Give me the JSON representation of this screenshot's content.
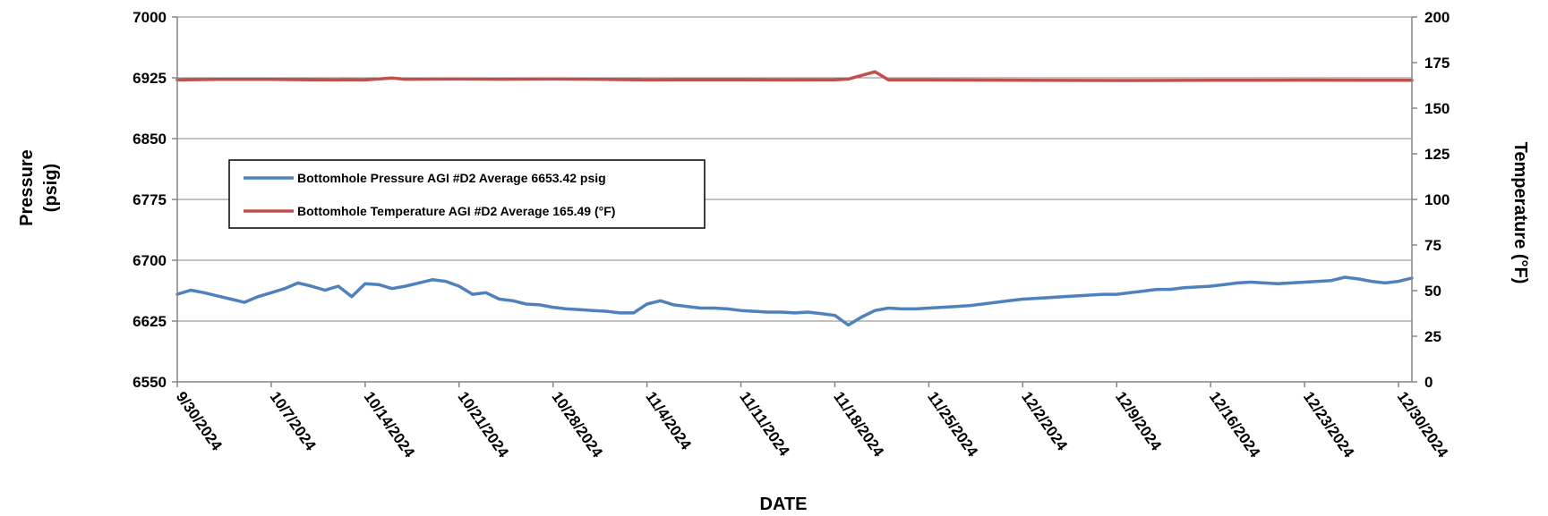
{
  "chart_data": {
    "type": "line",
    "title": "",
    "xlabel": "DATE",
    "ylabel_left": "Pressure (psig)",
    "ylabel_left_lines": [
      "Pressure",
      "(psig)"
    ],
    "ylabel_right": "Temperature (°F)",
    "x_range": [
      "2024-09-30",
      "2024-12-31"
    ],
    "x_tick_labels": [
      "9/30/2024",
      "10/7/2024",
      "10/14/2024",
      "10/21/2024",
      "10/28/2024",
      "11/4/2024",
      "11/11/2024",
      "11/18/2024",
      "11/25/2024",
      "12/2/2024",
      "12/9/2024",
      "12/16/2024",
      "12/23/2024",
      "12/30/2024"
    ],
    "y_left_range": [
      6550,
      7000
    ],
    "y_left_ticks": [
      6550,
      6625,
      6700,
      6775,
      6850,
      6925,
      7000
    ],
    "y_right_range": [
      0,
      200
    ],
    "y_right_ticks": [
      0,
      25,
      50,
      75,
      100,
      125,
      150,
      175,
      200
    ],
    "grid": "horizontal",
    "legend_placement": "upper-left",
    "series": [
      {
        "name": "Bottomhole Pressure AGI #D2 Average 6653.42 psig",
        "axis": "left",
        "color": "#4F81BD",
        "x": [
          "2024-09-30",
          "2024-10-01",
          "2024-10-02",
          "2024-10-03",
          "2024-10-04",
          "2024-10-05",
          "2024-10-06",
          "2024-10-07",
          "2024-10-08",
          "2024-10-09",
          "2024-10-10",
          "2024-10-11",
          "2024-10-12",
          "2024-10-13",
          "2024-10-14",
          "2024-10-15",
          "2024-10-16",
          "2024-10-17",
          "2024-10-18",
          "2024-10-19",
          "2024-10-20",
          "2024-10-21",
          "2024-10-22",
          "2024-10-23",
          "2024-10-24",
          "2024-10-25",
          "2024-10-26",
          "2024-10-27",
          "2024-10-28",
          "2024-10-29",
          "2024-10-30",
          "2024-10-31",
          "2024-11-01",
          "2024-11-02",
          "2024-11-03",
          "2024-11-04",
          "2024-11-05",
          "2024-11-06",
          "2024-11-07",
          "2024-11-08",
          "2024-11-09",
          "2024-11-10",
          "2024-11-11",
          "2024-11-12",
          "2024-11-13",
          "2024-11-14",
          "2024-11-15",
          "2024-11-16",
          "2024-11-17",
          "2024-11-18",
          "2024-11-19",
          "2024-11-20",
          "2024-11-21",
          "2024-11-22",
          "2024-11-23",
          "2024-11-24",
          "2024-11-25",
          "2024-11-26",
          "2024-11-27",
          "2024-11-28",
          "2024-11-29",
          "2024-11-30",
          "2024-12-01",
          "2024-12-02",
          "2024-12-03",
          "2024-12-04",
          "2024-12-05",
          "2024-12-06",
          "2024-12-07",
          "2024-12-08",
          "2024-12-09",
          "2024-12-10",
          "2024-12-11",
          "2024-12-12",
          "2024-12-13",
          "2024-12-14",
          "2024-12-15",
          "2024-12-16",
          "2024-12-17",
          "2024-12-18",
          "2024-12-19",
          "2024-12-20",
          "2024-12-21",
          "2024-12-22",
          "2024-12-23",
          "2024-12-24",
          "2024-12-25",
          "2024-12-26",
          "2024-12-27",
          "2024-12-28",
          "2024-12-29",
          "2024-12-30",
          "2024-12-31"
        ],
        "values": [
          6658,
          6663,
          6660,
          6656,
          6652,
          6648,
          6655,
          6660,
          6665,
          6672,
          6668,
          6663,
          6668,
          6655,
          6671,
          6670,
          6665,
          6668,
          6672,
          6676,
          6674,
          6668,
          6658,
          6660,
          6652,
          6650,
          6646,
          6645,
          6642,
          6640,
          6639,
          6638,
          6637,
          6635,
          6635,
          6646,
          6650,
          6645,
          6643,
          6641,
          6641,
          6640,
          6638,
          6637,
          6636,
          6636,
          6635,
          6636,
          6634,
          6632,
          6620,
          6630,
          6638,
          6641,
          6640,
          6640,
          6641,
          6642,
          6643,
          6644,
          6646,
          6648,
          6650,
          6652,
          6653,
          6654,
          6655,
          6656,
          6657,
          6658,
          6658,
          6660,
          6662,
          6664,
          6664,
          6666,
          6667,
          6668,
          6670,
          6672,
          6673,
          6672,
          6671,
          6672,
          6673,
          6674,
          6675,
          6679,
          6677,
          6674,
          6672,
          6674,
          6678
        ]
      },
      {
        "name": "Bottomhole Temperature AGI #D2  Average 165.49 (°F)",
        "axis": "right",
        "color": "#C0504D",
        "x": [
          "2024-09-30",
          "2024-10-03",
          "2024-10-07",
          "2024-10-10",
          "2024-10-14",
          "2024-10-16",
          "2024-10-17",
          "2024-10-21",
          "2024-10-24",
          "2024-10-28",
          "2024-10-31",
          "2024-11-04",
          "2024-11-07",
          "2024-11-11",
          "2024-11-14",
          "2024-11-18",
          "2024-11-19",
          "2024-11-20",
          "2024-11-21",
          "2024-11-22",
          "2024-11-25",
          "2024-12-02",
          "2024-12-09",
          "2024-12-16",
          "2024-12-23",
          "2024-12-31"
        ],
        "values": [
          165.5,
          165.8,
          165.8,
          165.6,
          165.5,
          166.5,
          165.9,
          166,
          165.9,
          166,
          165.9,
          165.5,
          165.6,
          165.6,
          165.5,
          165.6,
          166,
          168,
          170,
          165.5,
          165.5,
          165.3,
          165.2,
          165.3,
          165.4,
          165.3
        ]
      }
    ]
  }
}
